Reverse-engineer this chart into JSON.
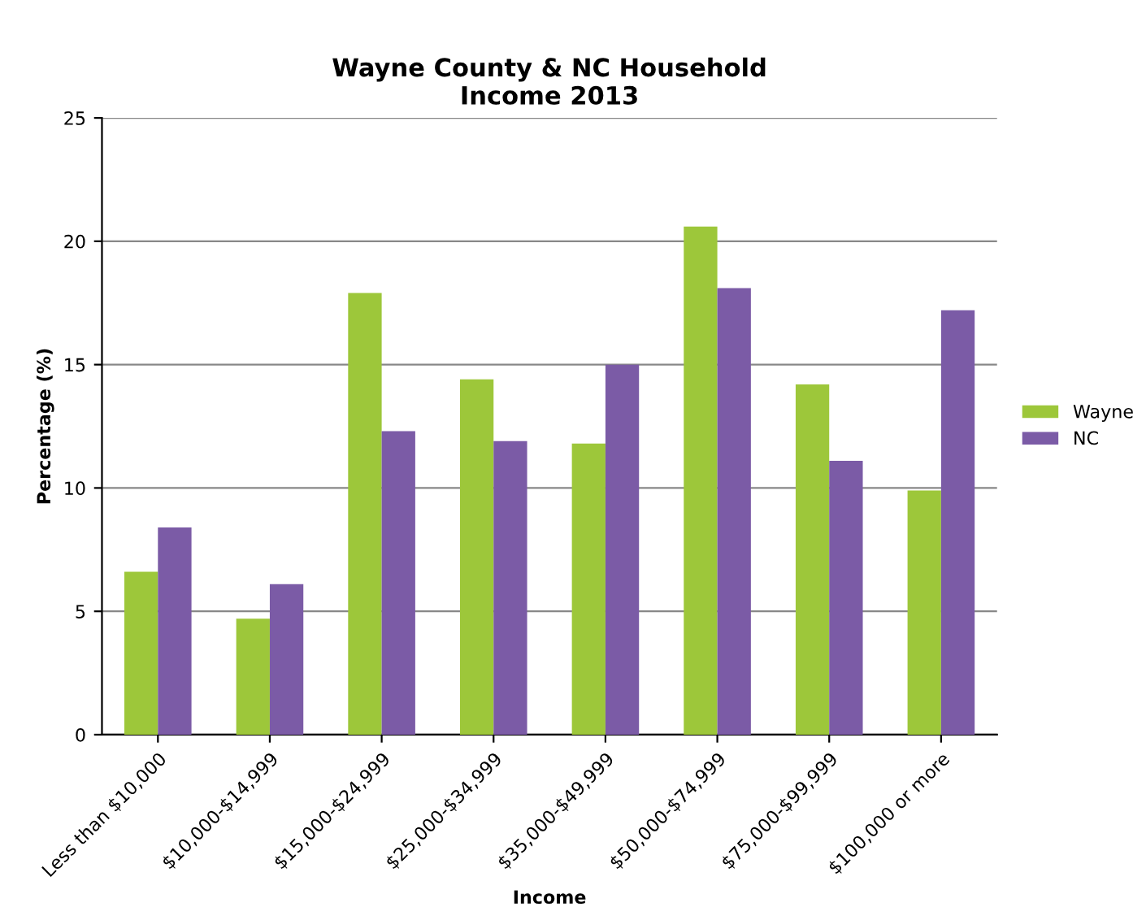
{
  "chart_data": {
    "type": "bar",
    "title": "Wayne County & NC Household\nIncome 2013",
    "xlabel": "Income",
    "ylabel": "Percentage (%)",
    "categories": [
      "Less than $10,000",
      "$10,000-$14,999",
      "$15,000-$24,999",
      "$25,000-$34,999",
      "$35,000-$49,999",
      "$50,000-$74,999",
      "$75,000-$99,999",
      "$100,000 or more"
    ],
    "series": [
      {
        "name": "Wayne",
        "color": "#9dc73a",
        "values": [
          6.6,
          4.7,
          17.9,
          14.4,
          11.8,
          20.6,
          14.2,
          9.9
        ]
      },
      {
        "name": "NC",
        "color": "#7b5ba6",
        "values": [
          8.4,
          6.1,
          12.3,
          11.9,
          15.0,
          18.1,
          11.1,
          17.2
        ]
      }
    ],
    "ylim": [
      0,
      25
    ],
    "yticks": [
      0,
      5,
      10,
      15,
      20,
      25
    ],
    "grid": "y",
    "legend": "right"
  }
}
